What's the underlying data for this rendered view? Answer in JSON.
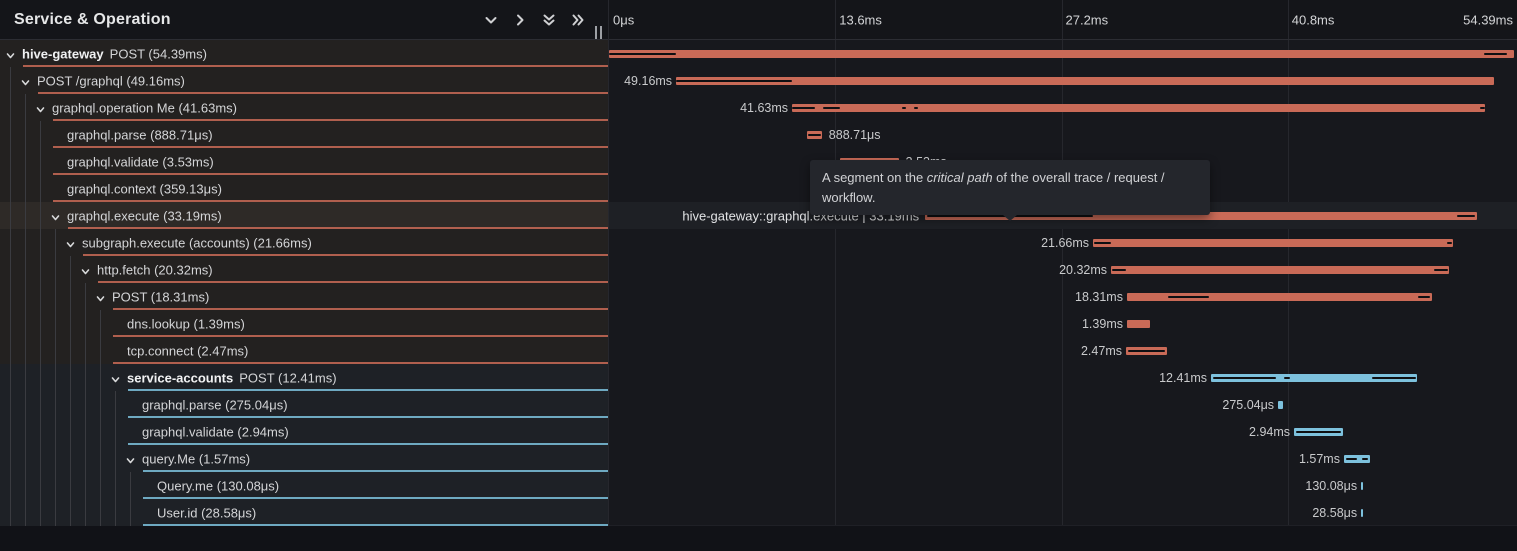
{
  "colors": {
    "span_salmon": "#c96a57",
    "span_blue": "#7dc1dd",
    "critical_path": "#0e0f12",
    "timeline_bg": "#17181d",
    "left_row_bg": "#232120",
    "left_row_bg_alt": "#1e2126"
  },
  "header": {
    "title": "Service & Operation",
    "icons": [
      {
        "name": "chevron-down-icon"
      },
      {
        "name": "chevron-right-icon"
      },
      {
        "name": "collapse-all-icon"
      },
      {
        "name": "expand-all-icon"
      }
    ],
    "axis_ticks": [
      {
        "label": "0μs",
        "pct": 0,
        "align": "left"
      },
      {
        "label": "13.6ms",
        "pct": 25,
        "align": "left"
      },
      {
        "label": "27.2ms",
        "pct": 50,
        "align": "left"
      },
      {
        "label": "40.8ms",
        "pct": 75,
        "align": "left"
      },
      {
        "label": "54.39ms",
        "pct": 100,
        "align": "right"
      }
    ],
    "gridline_pcts": [
      25,
      50,
      75
    ]
  },
  "tooltip": {
    "text_before": "A segment on the ",
    "text_italic": "critical path",
    "text_after": " of the overall trace / request / workflow."
  },
  "trace": {
    "total_ms": 54.39,
    "rows": [
      {
        "service": "hive-gateway",
        "name": "POST",
        "duration": "54.39ms",
        "depth": 0,
        "expandable": true,
        "color": "salmon",
        "band": "warm",
        "bar_start_ms": 0,
        "bar_dur_ms": 54.39,
        "bar_label_side": "none",
        "critical_ms": [
          [
            0,
            4.0
          ],
          [
            52.6,
            54.0
          ]
        ]
      },
      {
        "service": "",
        "name": "POST /graphql",
        "duration": "49.16ms",
        "depth": 1,
        "expandable": true,
        "color": "salmon",
        "band": "warm",
        "bar_start_ms": 4.03,
        "bar_dur_ms": 49.16,
        "bar_label_side": "left",
        "critical_ms": [
          [
            4.03,
            11.0
          ]
        ]
      },
      {
        "service": "",
        "name": "graphql.operation Me",
        "duration": "41.63ms",
        "depth": 2,
        "expandable": true,
        "color": "salmon",
        "band": "warm",
        "bar_start_ms": 11.0,
        "bar_dur_ms": 41.63,
        "bar_label_side": "left",
        "critical_ms": [
          [
            11.0,
            12.4
          ],
          [
            12.85,
            13.9
          ],
          [
            17.6,
            17.85
          ],
          [
            18.35,
            18.6
          ],
          [
            52.35,
            52.63
          ]
        ]
      },
      {
        "service": "",
        "name": "graphql.parse",
        "duration": "888.71μs",
        "depth": 3,
        "expandable": false,
        "color": "salmon",
        "band": "warm",
        "bar_start_ms": 11.9,
        "bar_dur_ms": 0.889,
        "bar_label_side": "right",
        "critical_ms": [
          [
            11.95,
            12.72
          ]
        ]
      },
      {
        "service": "",
        "name": "graphql.validate",
        "duration": "3.53ms",
        "depth": 3,
        "expandable": false,
        "color": "salmon",
        "band": "warm",
        "bar_start_ms": 13.88,
        "bar_dur_ms": 3.53,
        "bar_label_side": "right",
        "critical_ms": [
          [
            13.95,
            17.3
          ]
        ]
      },
      {
        "service": "",
        "name": "graphql.context",
        "duration": "359.13μs",
        "depth": 3,
        "expandable": false,
        "color": "salmon",
        "band": "warm",
        "bar_start_ms": 17.6,
        "bar_dur_ms": 0.359,
        "bar_label_side": "right",
        "critical_ms": []
      },
      {
        "service": "",
        "name": "graphql.execute",
        "duration": "33.19ms",
        "depth": 3,
        "expandable": true,
        "color": "salmon",
        "band": "warm",
        "bar_start_ms": 19.0,
        "bar_dur_ms": 33.19,
        "bar_label_side": "hover",
        "hovered": true,
        "hover_label": "hive-gateway::graphql.execute | 33.19ms",
        "critical_ms": [
          [
            19.1,
            29.1
          ],
          [
            50.95,
            52.05
          ]
        ]
      },
      {
        "service": "",
        "name": "subgraph.execute (accounts)",
        "duration": "21.66ms",
        "depth": 4,
        "expandable": true,
        "color": "salmon",
        "band": "warm",
        "bar_start_ms": 29.09,
        "bar_dur_ms": 21.66,
        "bar_label_side": "left",
        "critical_ms": [
          [
            29.15,
            30.2
          ],
          [
            50.35,
            50.68
          ]
        ]
      },
      {
        "service": "",
        "name": "http.fetch",
        "duration": "20.32ms",
        "depth": 5,
        "expandable": true,
        "color": "salmon",
        "band": "warm",
        "bar_start_ms": 30.17,
        "bar_dur_ms": 20.32,
        "bar_label_side": "left",
        "critical_ms": [
          [
            30.22,
            31.1
          ],
          [
            49.6,
            50.4
          ]
        ]
      },
      {
        "service": "",
        "name": "POST",
        "duration": "18.31ms",
        "depth": 6,
        "expandable": true,
        "color": "salmon",
        "band": "warm",
        "bar_start_ms": 31.13,
        "bar_dur_ms": 18.31,
        "bar_label_side": "left",
        "critical_ms": [
          [
            33.6,
            36.05
          ],
          [
            48.65,
            49.35
          ]
        ]
      },
      {
        "service": "",
        "name": "dns.lookup",
        "duration": "1.39ms",
        "depth": 7,
        "expandable": false,
        "color": "salmon",
        "band": "warm",
        "bar_start_ms": 31.13,
        "bar_dur_ms": 1.39,
        "bar_label_side": "left",
        "critical_ms": []
      },
      {
        "service": "",
        "name": "tcp.connect",
        "duration": "2.47ms",
        "depth": 7,
        "expandable": false,
        "color": "salmon",
        "band": "warm",
        "bar_start_ms": 31.07,
        "bar_dur_ms": 2.47,
        "bar_label_side": "left",
        "critical_ms": [
          [
            31.2,
            33.4
          ]
        ]
      },
      {
        "service": "service-accounts",
        "name": "POST",
        "duration": "12.41ms",
        "depth": 7,
        "expandable": true,
        "color": "blue",
        "band": "cool",
        "bar_start_ms": 36.18,
        "bar_dur_ms": 12.41,
        "bar_label_side": "left",
        "critical_ms": [
          [
            36.3,
            40.1
          ],
          [
            40.56,
            40.95
          ],
          [
            45.85,
            48.5
          ]
        ]
      },
      {
        "service": "",
        "name": "graphql.parse",
        "duration": "275.04μs",
        "depth": 8,
        "expandable": false,
        "color": "blue",
        "band": "cool",
        "bar_start_ms": 40.21,
        "bar_dur_ms": 0.275,
        "bar_label_side": "left",
        "critical_ms": []
      },
      {
        "service": "",
        "name": "graphql.validate",
        "duration": "2.94ms",
        "depth": 8,
        "expandable": false,
        "color": "blue",
        "band": "cool",
        "bar_start_ms": 41.17,
        "bar_dur_ms": 2.94,
        "bar_label_side": "left",
        "critical_ms": [
          [
            41.3,
            44.0
          ]
        ]
      },
      {
        "service": "",
        "name": "query.Me",
        "duration": "1.57ms",
        "depth": 8,
        "expandable": true,
        "color": "blue",
        "band": "cool",
        "bar_start_ms": 44.17,
        "bar_dur_ms": 1.57,
        "bar_label_side": "left",
        "critical_ms": [
          [
            44.3,
            44.95
          ],
          [
            45.25,
            45.6
          ]
        ]
      },
      {
        "service": "",
        "name": "Query.me",
        "duration": "130.08μs",
        "depth": 9,
        "expandable": false,
        "color": "blue",
        "band": "cool",
        "bar_start_ms": 45.2,
        "bar_dur_ms": 0.13008,
        "bar_label_side": "left",
        "critical_ms": []
      },
      {
        "service": "",
        "name": "User.id",
        "duration": "28.58μs",
        "depth": 9,
        "expandable": false,
        "color": "blue",
        "band": "cool",
        "bar_start_ms": 45.2,
        "bar_dur_ms": 0.02858,
        "bar_label_side": "left",
        "critical_ms": []
      }
    ]
  }
}
